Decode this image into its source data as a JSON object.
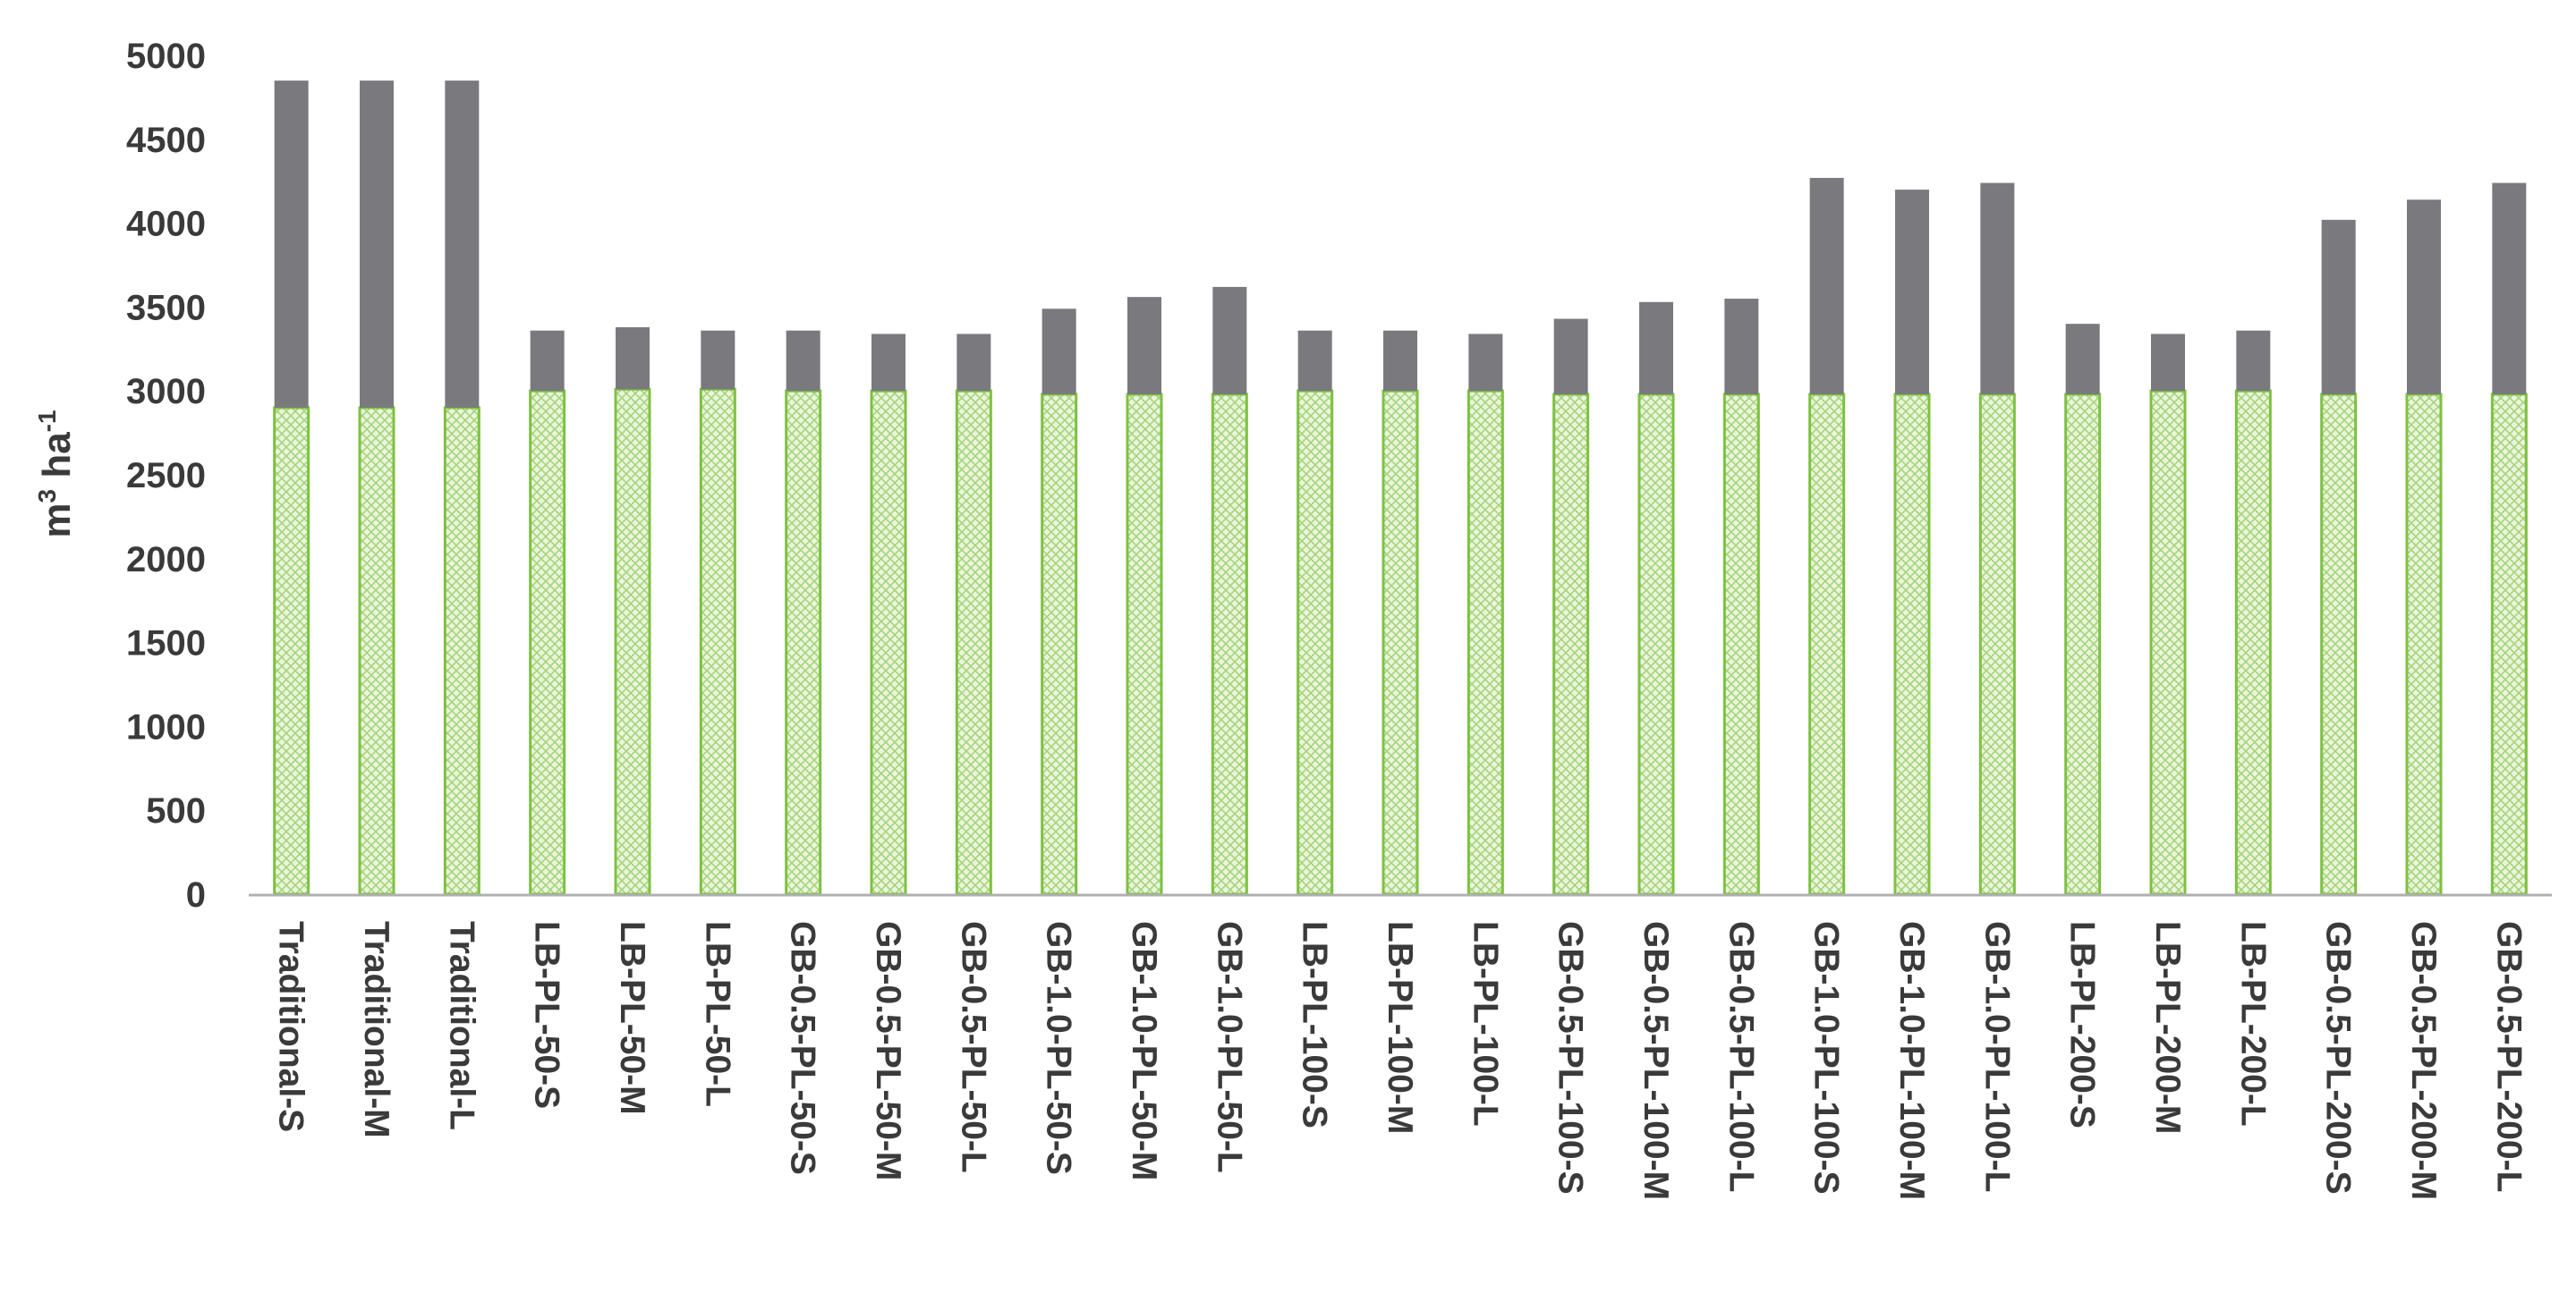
{
  "chart_data": {
    "type": "bar",
    "stacked": true,
    "ylabel_base": "m",
    "ylabel_sup1": "3",
    "ylabel_mid": " ha",
    "ylabel_sup2": "-1",
    "ylim": [
      0,
      5000
    ],
    "yticks": [
      0,
      500,
      1000,
      1500,
      2000,
      2500,
      3000,
      3500,
      4000,
      4500,
      5000
    ],
    "grid": false,
    "categories": [
      "Traditional-S",
      "Traditional-M",
      "Traditional-L",
      "LB-PL-50-S",
      "LB-PL-50-M",
      "LB-PL-50-L",
      "GB-0.5-PL-50-S",
      "GB-0.5-PL-50-M",
      "GB-0.5-PL-50-L",
      "GB-1.0-PL-50-S",
      "GB-1.0-PL-50-M",
      "GB-1.0-PL-50-L",
      "LB-PL-100-S",
      "LB-PL-100-M",
      "LB-PL-100-L",
      "GB-0.5-PL-100-S",
      "GB-0.5-PL-100-M",
      "GB-0.5-PL-100-L",
      "GB-1.0-PL-100-S",
      "GB-1.0-PL-100-M",
      "GB-1.0-PL-100-L",
      "LB-PL-200-S",
      "LB-PL-200-M",
      "LB-PL-200-L",
      "GB-0.5-PL-200-S",
      "GB-0.5-PL-200-M",
      "GB-0.5-PL-200-L"
    ],
    "series": [
      {
        "color": "#7ec142",
        "pattern": "green-crosshatch",
        "values": [
          2900,
          2900,
          2900,
          3000,
          3010,
          3010,
          3000,
          3000,
          3000,
          2980,
          2980,
          2980,
          3000,
          3000,
          3000,
          2980,
          2980,
          2980,
          2980,
          2980,
          2980,
          2980,
          3000,
          3000,
          2980,
          2980,
          2980
        ]
      },
      {
        "color": "#7a797e",
        "values": [
          1950,
          1950,
          1950,
          360,
          370,
          350,
          360,
          340,
          340,
          510,
          580,
          640,
          360,
          360,
          340,
          450,
          550,
          570,
          1290,
          1220,
          1260,
          420,
          340,
          360,
          1040,
          1160,
          1260
        ]
      }
    ]
  }
}
